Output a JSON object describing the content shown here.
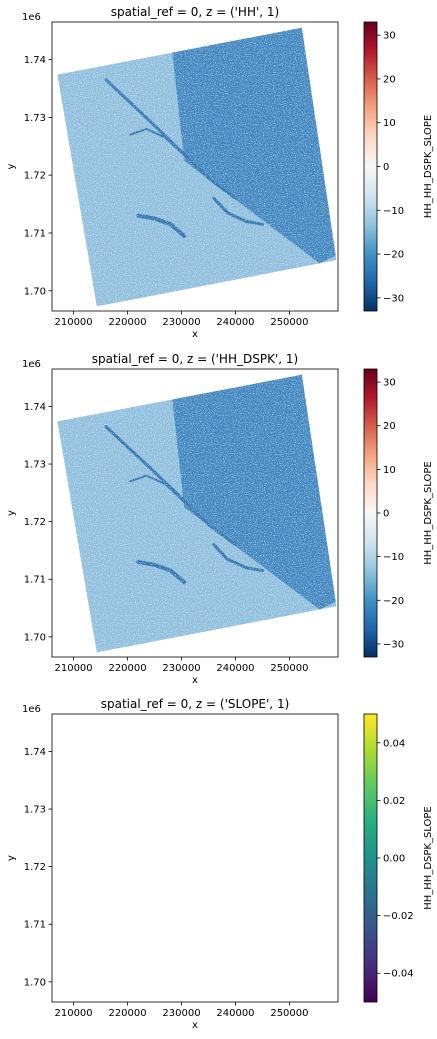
{
  "chart_data": [
    {
      "type": "heatmap",
      "title": "spatial_ref = 0, z = ('HH', 1)",
      "xlabel": "x",
      "ylabel": "y",
      "y_offset_text": "1e6",
      "x_ticks": [
        210000,
        220000,
        230000,
        240000,
        250000
      ],
      "x_tick_labels": [
        "210000",
        "220000",
        "230000",
        "240000",
        "250000"
      ],
      "y_ticks": [
        1.7,
        1.71,
        1.72,
        1.73,
        1.74
      ],
      "y_tick_labels": [
        "1.70",
        "1.71",
        "1.72",
        "1.73",
        "1.74"
      ],
      "xlim": [
        206000,
        259000
      ],
      "ylim": [
        1696500,
        1746500
      ],
      "footprint_corners": [
        [
          214300,
          1697300
        ],
        [
          258700,
          1705300
        ],
        [
          252300,
          1745500
        ],
        [
          207000,
          1737400
        ]
      ],
      "colorbar": {
        "label": "HH_HH_DSPK_SLOPE",
        "colormap": "RdBu_r",
        "range": [
          -33,
          33
        ],
        "ticks": [
          -30,
          -20,
          -10,
          0,
          10,
          20,
          30
        ],
        "tick_labels": [
          "−30",
          "−20",
          "−10",
          "0",
          "10",
          "20",
          "30"
        ]
      }
    },
    {
      "type": "heatmap",
      "title": "spatial_ref = 0, z = ('HH_DSPK', 1)",
      "xlabel": "x",
      "ylabel": "y",
      "y_offset_text": "1e6",
      "x_ticks": [
        210000,
        220000,
        230000,
        240000,
        250000
      ],
      "x_tick_labels": [
        "210000",
        "220000",
        "230000",
        "240000",
        "250000"
      ],
      "y_ticks": [
        1.7,
        1.71,
        1.72,
        1.73,
        1.74
      ],
      "y_tick_labels": [
        "1.70",
        "1.71",
        "1.72",
        "1.73",
        "1.74"
      ],
      "xlim": [
        206000,
        259000
      ],
      "ylim": [
        1696500,
        1746500
      ],
      "footprint_corners": [
        [
          214300,
          1697300
        ],
        [
          258700,
          1705300
        ],
        [
          252300,
          1745500
        ],
        [
          207000,
          1737400
        ]
      ],
      "colorbar": {
        "label": "HH_HH_DSPK_SLOPE",
        "colormap": "RdBu_r",
        "range": [
          -33,
          33
        ],
        "ticks": [
          -30,
          -20,
          -10,
          0,
          10,
          20,
          30
        ],
        "tick_labels": [
          "−30",
          "−20",
          "−10",
          "0",
          "10",
          "20",
          "30"
        ]
      }
    },
    {
      "type": "heatmap",
      "title": "spatial_ref = 0, z = ('SLOPE', 1)",
      "xlabel": "x",
      "ylabel": "y",
      "y_offset_text": "1e6",
      "x_ticks": [
        210000,
        220000,
        230000,
        240000,
        250000
      ],
      "x_tick_labels": [
        "210000",
        "220000",
        "230000",
        "240000",
        "250000"
      ],
      "y_ticks": [
        1.7,
        1.71,
        1.72,
        1.73,
        1.74
      ],
      "y_tick_labels": [
        "1.70",
        "1.71",
        "1.72",
        "1.73",
        "1.74"
      ],
      "xlim": [
        206000,
        259000
      ],
      "ylim": [
        1696500,
        1746500
      ],
      "footprint_corners": [],
      "colorbar": {
        "label": "HH_HH_DSPK_SLOPE",
        "colormap": "viridis",
        "range": [
          -0.05,
          0.05
        ],
        "ticks": [
          -0.04,
          -0.02,
          0.0,
          0.02,
          0.04
        ],
        "tick_labels": [
          "−0.04",
          "−0.02",
          "0.00",
          "0.02",
          "0.04"
        ]
      }
    }
  ]
}
